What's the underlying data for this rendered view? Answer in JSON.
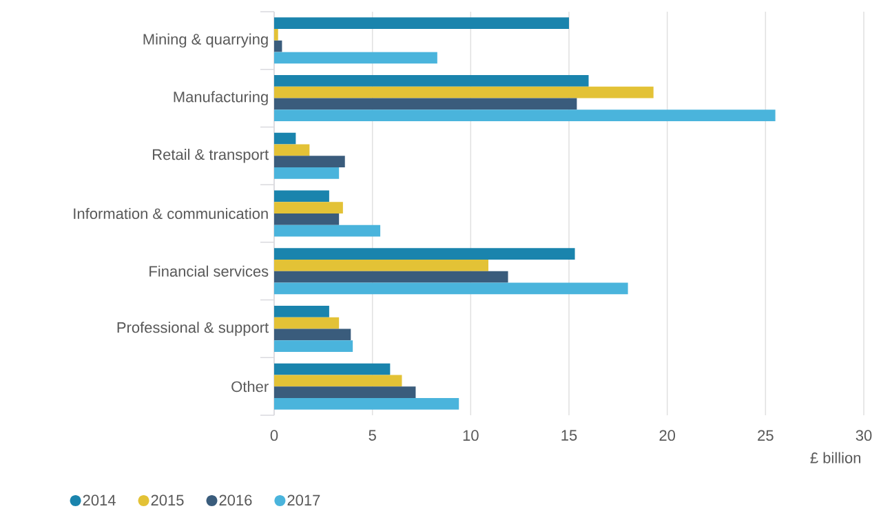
{
  "chart_data": {
    "type": "bar",
    "orientation": "horizontal",
    "xlabel": "£ billion",
    "categories": [
      "Mining & quarrying",
      "Manufacturing",
      "Retail & transport",
      "Information & communication",
      "Financial services",
      "Professional & support",
      "Other"
    ],
    "series": [
      {
        "name": "2014",
        "color": "#1a84ad",
        "values": [
          15.0,
          16.0,
          1.1,
          2.8,
          15.3,
          2.8,
          5.9
        ]
      },
      {
        "name": "2015",
        "color": "#e3c236",
        "values": [
          0.2,
          19.3,
          1.8,
          3.5,
          10.9,
          3.3,
          6.5
        ]
      },
      {
        "name": "2016",
        "color": "#3a5c7c",
        "values": [
          0.4,
          15.4,
          3.6,
          3.3,
          11.9,
          3.9,
          7.2
        ]
      },
      {
        "name": "2017",
        "color": "#4ab4dc",
        "values": [
          8.3,
          25.5,
          3.3,
          5.4,
          18.0,
          4.0,
          9.4
        ]
      }
    ],
    "xlim": [
      0,
      30
    ],
    "xticks": [
      0,
      5,
      10,
      15,
      20,
      25,
      30
    ],
    "grid": "x",
    "legend": "bottom left"
  }
}
